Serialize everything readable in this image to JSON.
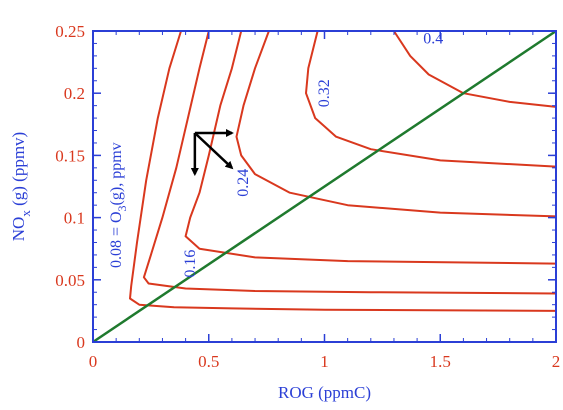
{
  "chart_data": {
    "type": "line",
    "title": "",
    "xlabel": "ROG (ppmC)",
    "ylabel_parts": {
      "main": "NO",
      "sub": "x",
      "rest": " (g) (ppmv)"
    },
    "xlim": [
      0,
      2
    ],
    "ylim": [
      0,
      0.25
    ],
    "xticks": [
      {
        "value": 0,
        "label": "0"
      },
      {
        "value": 0.5,
        "label": "0.5"
      },
      {
        "value": 1,
        "label": "1"
      },
      {
        "value": 1.5,
        "label": "1.5"
      },
      {
        "value": 2,
        "label": "2"
      }
    ],
    "yticks": [
      {
        "value": 0,
        "label": "0"
      },
      {
        "value": 0.05,
        "label": "0.05"
      },
      {
        "value": 0.1,
        "label": "0.1"
      },
      {
        "value": 0.15,
        "label": "0.15"
      },
      {
        "value": 0.2,
        "label": "0.2"
      },
      {
        "value": 0.25,
        "label": "0.25"
      }
    ],
    "contour_labels": [
      {
        "text": "0.08 = O",
        "sub": "3",
        "rest": "(g), ppmv",
        "x": 0.12,
        "y": 0.11,
        "rotate": -90
      },
      {
        "text": "0.16",
        "x": 0.44,
        "y": 0.063,
        "rotate": -90
      },
      {
        "text": "0.24",
        "x": 0.67,
        "y": 0.128,
        "rotate": -90
      },
      {
        "text": "0.32",
        "x": 1.02,
        "y": 0.2,
        "rotate": -90
      },
      {
        "text": "0.4",
        "x": 1.47,
        "y": 0.24,
        "rotate": 0
      }
    ],
    "series": [
      {
        "values": [
          [
            0.38,
            0.25
          ],
          [
            0.33,
            0.22
          ],
          [
            0.28,
            0.18
          ],
          [
            0.23,
            0.13
          ],
          [
            0.19,
            0.08
          ],
          [
            0.165,
            0.045
          ],
          [
            0.16,
            0.035
          ],
          [
            0.2,
            0.03
          ],
          [
            0.35,
            0.028
          ],
          [
            0.6,
            0.027
          ],
          [
            1.0,
            0.026
          ],
          [
            2.0,
            0.025
          ]
        ]
      },
      {
        "values": [
          [
            0.5,
            0.25
          ],
          [
            0.46,
            0.22
          ],
          [
            0.41,
            0.18
          ],
          [
            0.36,
            0.14
          ],
          [
            0.3,
            0.1
          ],
          [
            0.25,
            0.07
          ],
          [
            0.22,
            0.052
          ],
          [
            0.24,
            0.047
          ],
          [
            0.4,
            0.043
          ],
          [
            0.7,
            0.041
          ],
          [
            1.2,
            0.04
          ],
          [
            2.0,
            0.039
          ]
        ]
      },
      {
        "values": [
          [
            0.64,
            0.25
          ],
          [
            0.6,
            0.22
          ],
          [
            0.55,
            0.19
          ],
          [
            0.5,
            0.15
          ],
          [
            0.46,
            0.12
          ],
          [
            0.42,
            0.1
          ],
          [
            0.4,
            0.085
          ],
          [
            0.46,
            0.075
          ],
          [
            0.7,
            0.068
          ],
          [
            1.1,
            0.065
          ],
          [
            2.0,
            0.063
          ]
        ]
      },
      {
        "values": [
          [
            0.76,
            0.25
          ],
          [
            0.7,
            0.22
          ],
          [
            0.65,
            0.19
          ],
          [
            0.62,
            0.165
          ],
          [
            0.64,
            0.15
          ],
          [
            0.7,
            0.135
          ],
          [
            0.85,
            0.12
          ],
          [
            1.1,
            0.11
          ],
          [
            1.5,
            0.104
          ],
          [
            2.0,
            0.101
          ]
        ]
      },
      {
        "values": [
          [
            0.97,
            0.25
          ],
          [
            0.93,
            0.22
          ],
          [
            0.92,
            0.2
          ],
          [
            0.96,
            0.18
          ],
          [
            1.05,
            0.165
          ],
          [
            1.2,
            0.155
          ],
          [
            1.5,
            0.146
          ],
          [
            2.0,
            0.141
          ]
        ]
      },
      {
        "values": [
          [
            1.3,
            0.25
          ],
          [
            1.37,
            0.23
          ],
          [
            1.45,
            0.215
          ],
          [
            1.6,
            0.2
          ],
          [
            1.8,
            0.193
          ],
          [
            2.0,
            0.189
          ]
        ]
      }
    ],
    "line": {
      "values": [
        [
          0,
          0
        ],
        [
          2,
          0.25
        ]
      ]
    },
    "arrows": {
      "origin": [
        0.44,
        0.168
      ],
      "tips": [
        [
          0.6,
          0.168
        ],
        [
          0.44,
          0.135
        ],
        [
          0.6,
          0.14
        ]
      ]
    },
    "colors": {
      "contour": "#d9381e",
      "diagonal": "#1f7a2e",
      "axis": "#2b3fd6",
      "tick_label": "#d9381e",
      "arrow": "#000000"
    }
  }
}
